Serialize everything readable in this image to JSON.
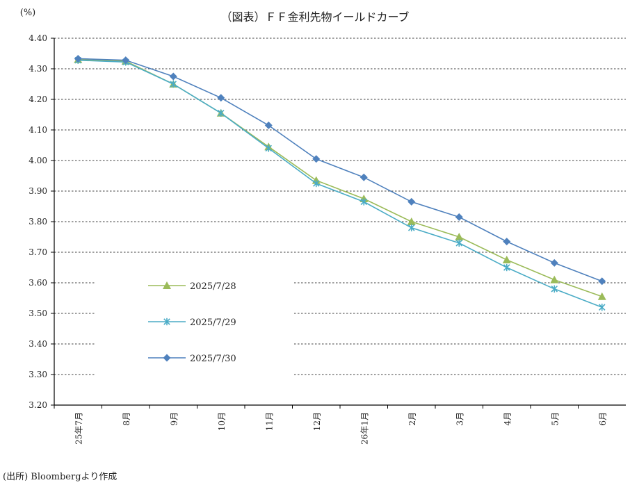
{
  "chart_data": {
    "type": "line",
    "title": "（図表）ＦＦ金利先物イールドカーブ",
    "ylabel": "(%)",
    "xlabel": "",
    "ylim": [
      3.2,
      4.4
    ],
    "yticks": [
      "4.40",
      "4.30",
      "4.20",
      "4.10",
      "4.00",
      "3.90",
      "3.80",
      "3.70",
      "3.60",
      "3.50",
      "3.40",
      "3.30",
      "3.20"
    ],
    "grid": "horizontal dashed",
    "legend": "lower-left",
    "categories": [
      "25年7月",
      "8月",
      "9月",
      "10月",
      "11月",
      "12月",
      "26年1月",
      "2月",
      "3月",
      "4月",
      "5月",
      "6月"
    ],
    "series": [
      {
        "name": "2025/7/28",
        "color": "#9bbb59",
        "marker": "triangle",
        "values": [
          4.33,
          4.325,
          4.25,
          4.155,
          4.045,
          3.935,
          3.875,
          3.8,
          3.75,
          3.675,
          3.61,
          3.555
        ]
      },
      {
        "name": "2025/7/29",
        "color": "#4bacc6",
        "marker": "star",
        "values": [
          4.328,
          4.322,
          4.25,
          4.155,
          4.04,
          3.925,
          3.865,
          3.78,
          3.73,
          3.65,
          3.58,
          3.52
        ]
      },
      {
        "name": "2025/7/30",
        "color": "#4f81bd",
        "marker": "diamond",
        "values": [
          4.333,
          4.328,
          4.275,
          4.205,
          4.115,
          4.005,
          3.945,
          3.865,
          3.815,
          3.735,
          3.665,
          3.605
        ]
      }
    ],
    "source": "(出所) Bloombergより作成"
  }
}
